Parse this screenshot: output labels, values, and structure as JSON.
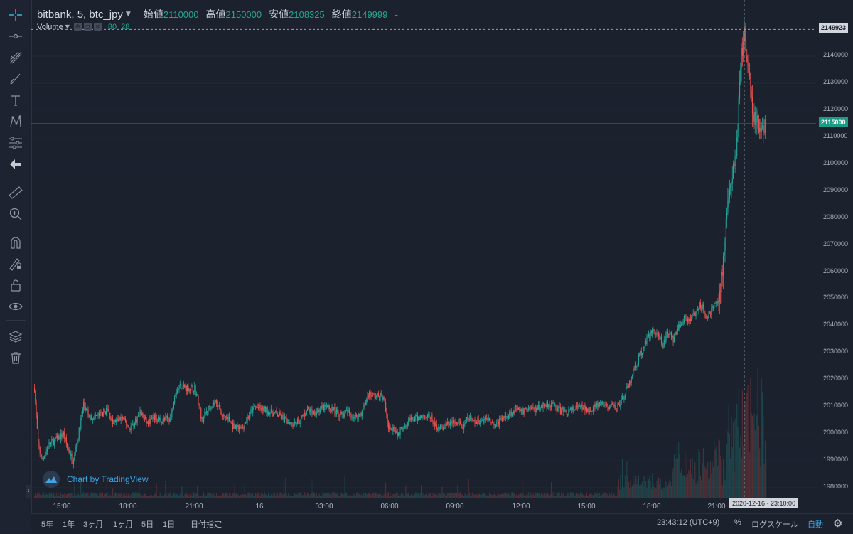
{
  "header": {
    "symbol": "bitbank, 5, btc_jpy",
    "open_label": "始値",
    "open": "2110000",
    "high_label": "高値",
    "high": "2150000",
    "low_label": "安値",
    "low": "2108325",
    "close_label": "終値",
    "close": "2149999",
    "change": "-"
  },
  "volume": {
    "label": "Volume",
    "value1": "80",
    "value2": "28"
  },
  "price_axis": {
    "ticks": [
      "2140000",
      "2130000",
      "2120000",
      "2110000",
      "2100000",
      "2090000",
      "2080000",
      "2070000",
      "2060000",
      "2050000",
      "2040000",
      "2030000",
      "2020000",
      "2010000",
      "2000000",
      "1990000",
      "1980000"
    ],
    "hover_price": "2149923",
    "last_price": "2115000"
  },
  "time_axis": {
    "ticks": [
      "15:00",
      "18:00",
      "21:00",
      "16",
      "03:00",
      "06:00",
      "09:00",
      "12:00",
      "15:00",
      "18:00",
      "21:00"
    ],
    "hover_time": "2020-12-16 · 23:10:00"
  },
  "watermark": "Chart by TradingView",
  "bottom": {
    "ranges": [
      "5年",
      "1年",
      "3ヶ月",
      "1ヶ月",
      "5日",
      "1日"
    ],
    "goto_date": "日付指定",
    "clock": "23:43:12 (UTC+9)",
    "percent": "%",
    "log_scale": "ログスケール",
    "auto": "自動"
  },
  "toolbar_icons": [
    "crosshair-icon",
    "trend-line-icon",
    "pitchfork-icon",
    "brush-icon",
    "text-icon",
    "pattern-icon",
    "prediction-icon",
    "back-arrow-icon",
    "ruler-icon",
    "zoom-in-icon",
    "magnet-icon",
    "lock-drawing-icon",
    "lock-icon",
    "eye-icon",
    "layers-icon",
    "trash-icon"
  ],
  "colors": {
    "background": "#1b212d",
    "up": "#26a69a",
    "down": "#ef5350",
    "accent": "#3ea6e6"
  },
  "chart_data": {
    "type": "candlestick",
    "symbol": "btc_jpy",
    "interval": "5",
    "ylim": [
      1975000,
      2155000
    ],
    "price_ticks": [
      2140000,
      2130000,
      2120000,
      2110000,
      2100000,
      2090000,
      2080000,
      2070000,
      2060000,
      2050000,
      2040000,
      2030000,
      2020000,
      2010000,
      2000000,
      1990000,
      1980000
    ],
    "x_ticks": [
      "15:00",
      "18:00",
      "21:00",
      "16",
      "03:00",
      "06:00",
      "09:00",
      "12:00",
      "15:00",
      "18:00",
      "21:00"
    ],
    "close_path": [
      [
        0,
        2017000
      ],
      [
        4,
        1996000
      ],
      [
        8,
        1990000
      ],
      [
        16,
        1996000
      ],
      [
        24,
        1998000
      ],
      [
        32,
        2000000
      ],
      [
        36,
        1995000
      ],
      [
        42,
        1990000
      ],
      [
        48,
        1999000
      ],
      [
        54,
        2011000
      ],
      [
        60,
        2006000
      ],
      [
        72,
        2007000
      ],
      [
        80,
        2009000
      ],
      [
        86,
        2004000
      ],
      [
        96,
        2006000
      ],
      [
        104,
        2002000
      ],
      [
        110,
        2004000
      ],
      [
        116,
        2008000
      ],
      [
        124,
        2004000
      ],
      [
        132,
        2006000
      ],
      [
        140,
        2005000
      ],
      [
        150,
        2006000
      ],
      [
        154,
        2015000
      ],
      [
        160,
        2018000
      ],
      [
        168,
        2017000
      ],
      [
        176,
        2017000
      ],
      [
        180,
        2012000
      ],
      [
        184,
        2005000
      ],
      [
        192,
        2010000
      ],
      [
        200,
        2012000
      ],
      [
        206,
        2007000
      ],
      [
        212,
        2006000
      ],
      [
        220,
        2002000
      ],
      [
        228,
        2002000
      ],
      [
        236,
        2007000
      ],
      [
        242,
        2010000
      ],
      [
        252,
        2009000
      ],
      [
        260,
        2008000
      ],
      [
        268,
        2007000
      ],
      [
        276,
        2005000
      ],
      [
        284,
        2004000
      ],
      [
        292,
        2005000
      ],
      [
        300,
        2009000
      ],
      [
        306,
        2008000
      ],
      [
        314,
        2009000
      ],
      [
        320,
        2010000
      ],
      [
        328,
        2009000
      ],
      [
        336,
        2007000
      ],
      [
        344,
        2008000
      ],
      [
        352,
        2006000
      ],
      [
        360,
        2008000
      ],
      [
        367,
        2015000
      ],
      [
        373,
        2014000
      ],
      [
        380,
        2014000
      ],
      [
        385,
        2012000
      ],
      [
        388,
        2003000
      ],
      [
        395,
        2002000
      ],
      [
        400,
        2000000
      ],
      [
        405,
        2003000
      ],
      [
        412,
        2005000
      ],
      [
        422,
        2006000
      ],
      [
        430,
        2007000
      ],
      [
        436,
        2006000
      ],
      [
        440,
        2003000
      ],
      [
        448,
        2002000
      ],
      [
        456,
        2004000
      ],
      [
        466,
        2004000
      ],
      [
        471,
        2002000
      ],
      [
        476,
        2006000
      ],
      [
        484,
        2004000
      ],
      [
        492,
        2005000
      ],
      [
        500,
        2006000
      ],
      [
        505,
        2003000
      ],
      [
        512,
        2005000
      ],
      [
        520,
        2007000
      ],
      [
        528,
        2009000
      ],
      [
        536,
        2008000
      ],
      [
        544,
        2010000
      ],
      [
        552,
        2009000
      ],
      [
        560,
        2011000
      ],
      [
        568,
        2011000
      ],
      [
        576,
        2009000
      ],
      [
        584,
        2008000
      ],
      [
        592,
        2009000
      ],
      [
        600,
        2010000
      ],
      [
        608,
        2009000
      ],
      [
        616,
        2010000
      ],
      [
        624,
        2011000
      ],
      [
        632,
        2010000
      ],
      [
        640,
        2010000
      ],
      [
        648,
        2014000
      ],
      [
        656,
        2021000
      ],
      [
        664,
        2028000
      ],
      [
        672,
        2034000
      ],
      [
        680,
        2039000
      ],
      [
        686,
        2037000
      ],
      [
        690,
        2032000
      ],
      [
        696,
        2038000
      ],
      [
        702,
        2035000
      ],
      [
        708,
        2040000
      ],
      [
        714,
        2043000
      ],
      [
        720,
        2042000
      ],
      [
        726,
        2045000
      ],
      [
        732,
        2048000
      ],
      [
        738,
        2044000
      ],
      [
        742,
        2045000
      ],
      [
        746,
        2047000
      ],
      [
        752,
        2050000
      ],
      [
        756,
        2060000
      ],
      [
        760,
        2078000
      ],
      [
        764,
        2090000
      ],
      [
        768,
        2098000
      ],
      [
        772,
        2108000
      ],
      [
        776,
        2138000
      ],
      [
        780,
        2148000
      ],
      [
        782,
        2140000
      ],
      [
        786,
        2130000
      ],
      [
        790,
        2118000
      ],
      [
        794,
        2115000
      ],
      [
        798,
        2113000
      ],
      [
        804,
        2115000
      ]
    ],
    "last_price": 2115000,
    "hover_price": 2149923
  }
}
